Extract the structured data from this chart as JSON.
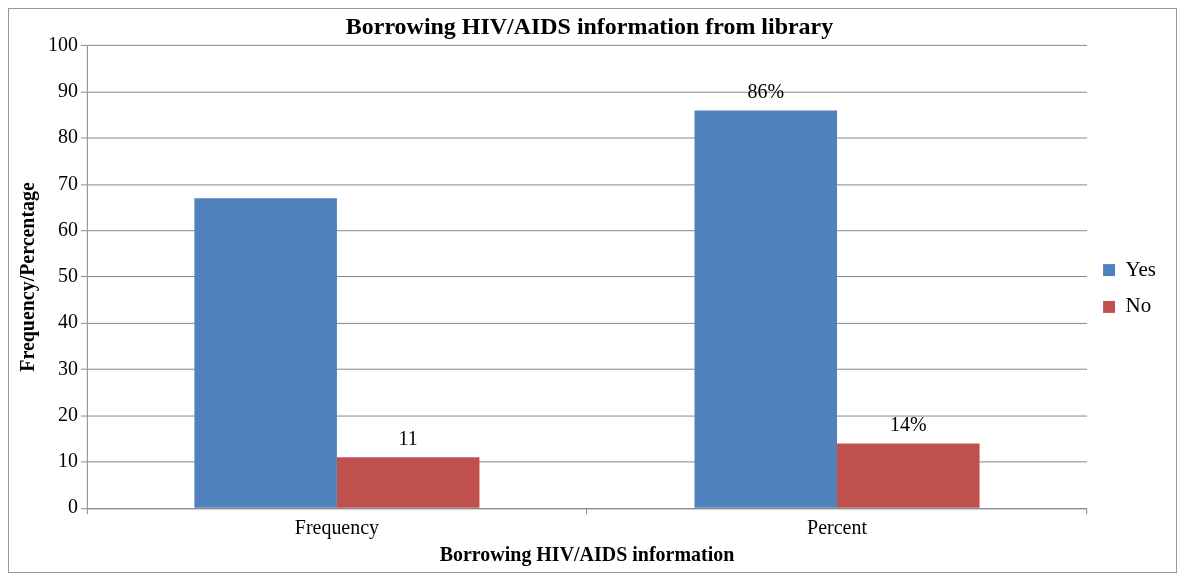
{
  "chart_data": {
    "type": "bar",
    "title": "Borrowing HIV/AIDS information from library",
    "xlabel": "Borrowing HIV/AIDS information",
    "ylabel": "Frequency/Percentage",
    "categories": [
      "Frequency",
      "Percent"
    ],
    "series": [
      {
        "name": "Yes",
        "color": "#4f81bd",
        "values": [
          67,
          86
        ],
        "value_labels": [
          null,
          "86%"
        ]
      },
      {
        "name": "No",
        "color": "#c0504d",
        "values": [
          11,
          14
        ],
        "value_labels": [
          "11",
          "14%"
        ]
      }
    ],
    "ylim": [
      0,
      100
    ],
    "yticks": [
      0,
      10,
      20,
      30,
      40,
      50,
      60,
      70,
      80,
      90,
      100
    ],
    "grid": "y",
    "legend": "right"
  }
}
